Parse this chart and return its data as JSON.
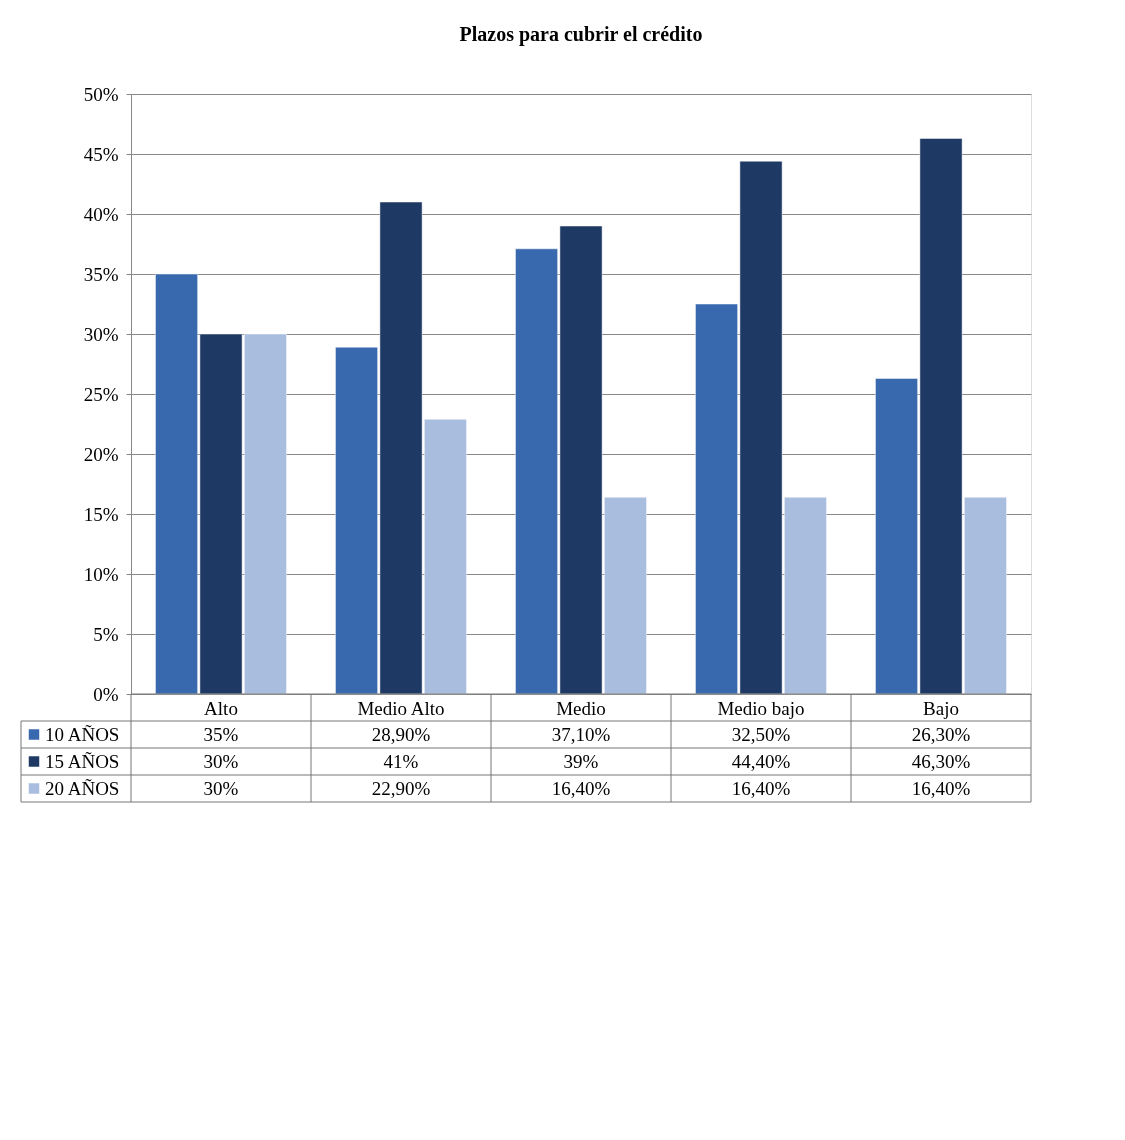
{
  "chart_data": {
    "type": "bar",
    "title": "Plazos para cubrir el crédito",
    "categories": [
      "Alto",
      "Medio Alto",
      "Medio",
      "Medio bajo",
      "Bajo"
    ],
    "series": [
      {
        "name": "10 AÑOS",
        "color": "#3868ad",
        "values": [
          35,
          28.9,
          37.1,
          32.5,
          26.3
        ],
        "value_labels": [
          "35%",
          "28,90%",
          "37,10%",
          "32,50%",
          "26,30%"
        ]
      },
      {
        "name": "15 AÑOS",
        "color": "#1e3a64",
        "values": [
          30,
          41,
          39,
          44.4,
          46.3
        ],
        "value_labels": [
          "30%",
          "41%",
          "39%",
          "44,40%",
          "46,30%"
        ]
      },
      {
        "name": "20 AÑOS",
        "color": "#a9bddf",
        "values": [
          30,
          22.9,
          16.4,
          16.4,
          16.4
        ],
        "value_labels": [
          "30%",
          "22,90%",
          "16,40%",
          "16,40%",
          "16,40%"
        ]
      }
    ],
    "ylim": [
      0,
      50
    ],
    "yticks": [
      {
        "value": 0,
        "label": "0%"
      },
      {
        "value": 5,
        "label": "5%"
      },
      {
        "value": 10,
        "label": "10%"
      },
      {
        "value": 15,
        "label": "15%"
      },
      {
        "value": 20,
        "label": "20%"
      },
      {
        "value": 25,
        "label": "25%"
      },
      {
        "value": 30,
        "label": "30%"
      },
      {
        "value": 35,
        "label": "35%"
      },
      {
        "value": 40,
        "label": "40%"
      },
      {
        "value": 45,
        "label": "45%"
      },
      {
        "value": 50,
        "label": "50%"
      }
    ],
    "grid": "y",
    "legend": "bottom"
  }
}
